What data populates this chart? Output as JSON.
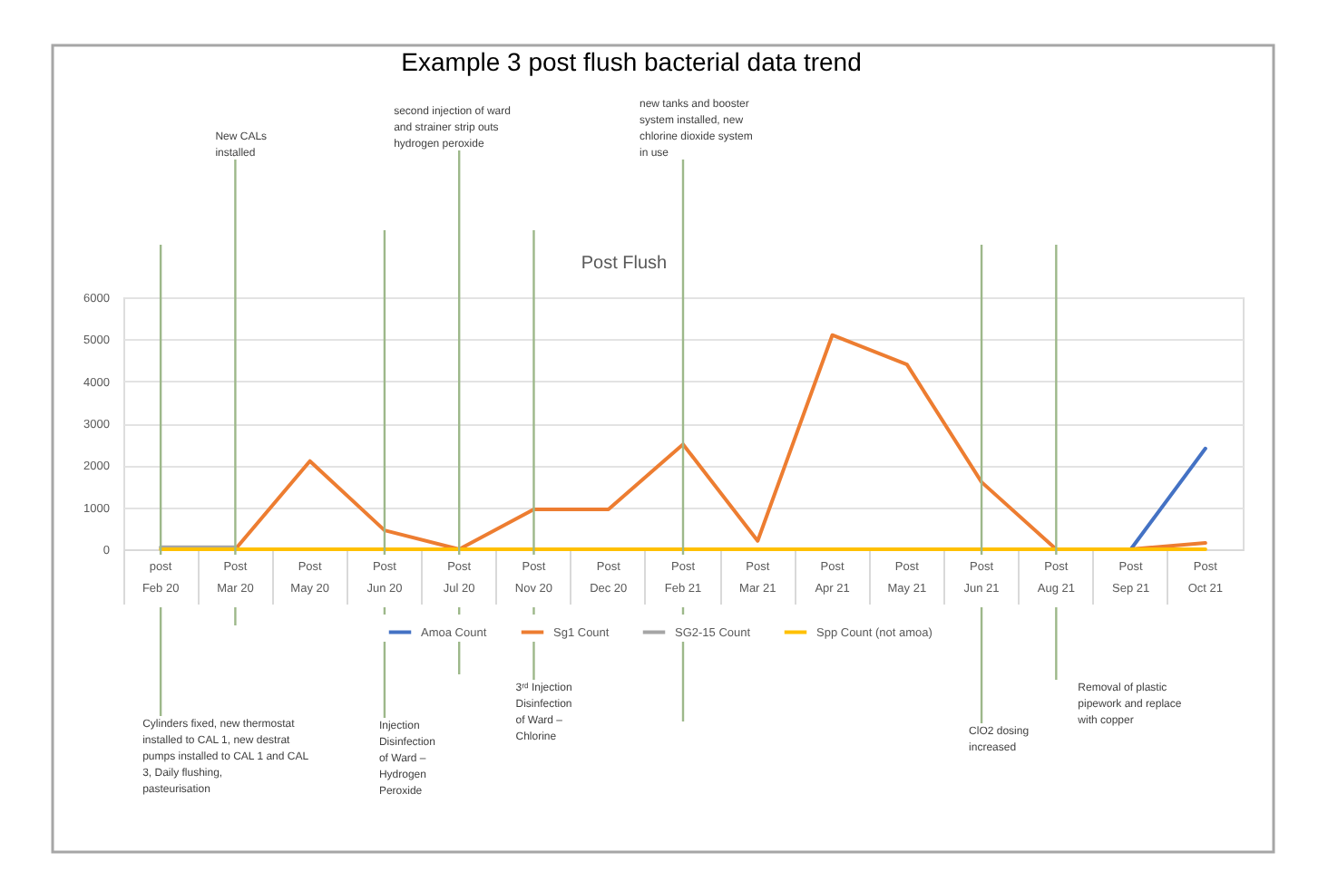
{
  "chart_data": {
    "type": "line",
    "title": "Example 3 post flush bacterial data trend",
    "subtitle": "Post Flush",
    "categories": [
      "post Feb 20",
      "Post Mar 20",
      "Post May 20",
      "Post Jun 20",
      "Post Jul 20",
      "Post Nov 20",
      "Post Dec 20",
      "Post Feb 21",
      "Post Mar 21",
      "Post Apr 21",
      "Post May 21",
      "Post Jun 21",
      "Post Aug 21",
      "Post Sep 21",
      "Post Oct 21"
    ],
    "series": [
      {
        "name": "Amoa Count",
        "color": "#4472c4",
        "values": [
          null,
          null,
          null,
          null,
          null,
          null,
          null,
          null,
          null,
          null,
          null,
          null,
          null,
          0,
          2400
        ]
      },
      {
        "name": "Sg1 Count",
        "color": "#ed7d31",
        "values": [
          null,
          0,
          2100,
          450,
          0,
          950,
          950,
          2500,
          200,
          5100,
          4400,
          1600,
          0,
          0,
          150
        ]
      },
      {
        "name": "SG2-15 Count",
        "color": "#a5a5a5",
        "values": [
          50,
          50,
          null,
          null,
          null,
          null,
          null,
          null,
          null,
          null,
          null,
          null,
          null,
          null,
          null
        ]
      },
      {
        "name": "Spp Count (not amoa)",
        "color": "#ffc000",
        "values": [
          0,
          0,
          0,
          0,
          0,
          0,
          0,
          0,
          0,
          0,
          0,
          0,
          0,
          0,
          0
        ]
      }
    ],
    "ylim": [
      0,
      6000
    ],
    "yticks": [
      0,
      1000,
      2000,
      3000,
      4000,
      5000,
      6000
    ],
    "grid": "y",
    "legend": "bottom",
    "ref_lines": [
      {
        "axis": "x",
        "value": "post Feb 20",
        "label": "Cylinders fixed, new thermostat installed to CAL 1, new destrat pumps installed to CAL 1 and CAL 3, Daily flushing, pasteurisation",
        "color": "#9db88a"
      },
      {
        "axis": "x",
        "value": "Post Mar 20",
        "label": "New CALs installed",
        "color": "#9db88a"
      },
      {
        "axis": "x",
        "value": "Post Jun 20",
        "label": "Injection Disinfection of Ward – Hydrogen Peroxide",
        "color": "#9db88a"
      },
      {
        "axis": "x",
        "value": "Post Jul 20",
        "label": "second injection of ward and strainer strip outs hydrogen peroxide",
        "color": "#9db88a"
      },
      {
        "axis": "x",
        "value": "Post Nov 20",
        "label": "3ʳᵈ Injection Disinfection of Ward – Chlorine",
        "color": "#9db88a"
      },
      {
        "axis": "x",
        "value": "Post Feb 21",
        "label": "new tanks and booster system installed, new chlorine dioxide system in use",
        "color": "#9db88a"
      },
      {
        "axis": "x",
        "value": "Post Jun 21",
        "label": "ClO2 dosing increased",
        "color": "#9db88a"
      },
      {
        "axis": "x",
        "value": "Post Aug 21",
        "label": "Removal of plastic pipework and replace with copper",
        "color": "#9db88a"
      }
    ]
  }
}
